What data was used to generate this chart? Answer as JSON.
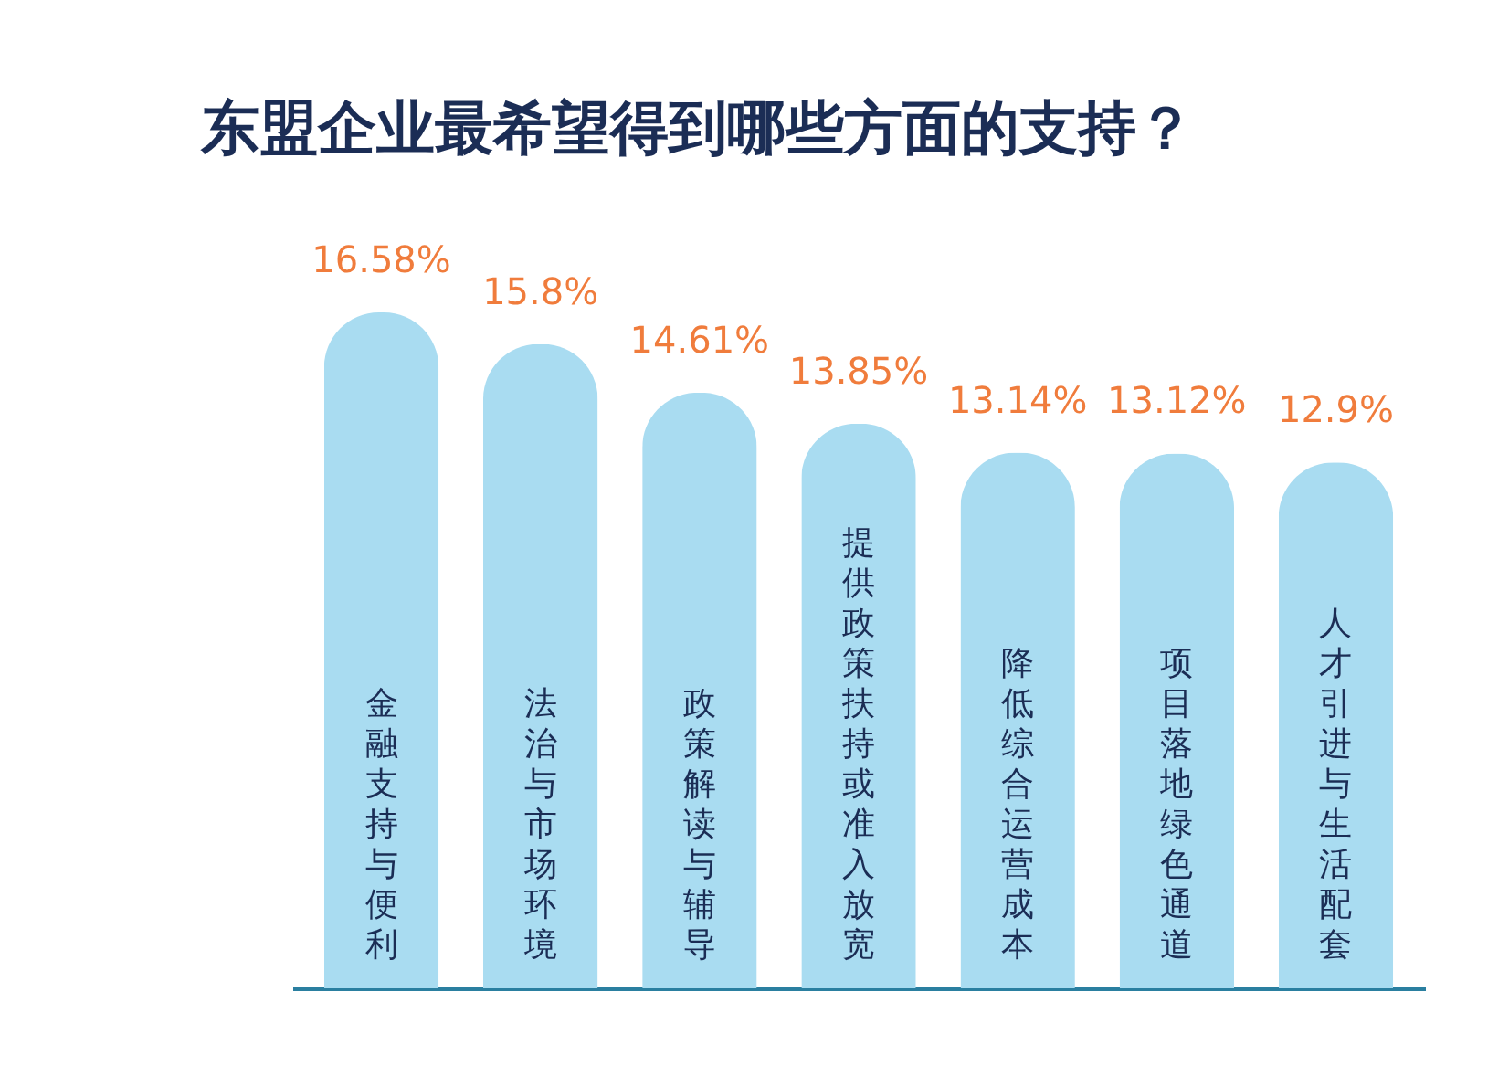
{
  "chart_data": {
    "type": "bar",
    "title": "东盟企业最希望得到哪些方面的支持？",
    "categories": [
      "金融支持与便利",
      "法治与市场环境",
      "政策解读与辅导",
      "提供政策扶持或准入放宽",
      "降低综合运营成本",
      "项目落地绿色通道",
      "人才引进与生活配套"
    ],
    "values": [
      16.58,
      15.8,
      14.61,
      13.85,
      13.14,
      13.12,
      12.9
    ],
    "value_labels": [
      "16.58%",
      "15.8%",
      "14.61%",
      "13.85%",
      "13.14%",
      "13.12%",
      "12.9%"
    ],
    "color": "#a9dcf1",
    "grid": false
  }
}
